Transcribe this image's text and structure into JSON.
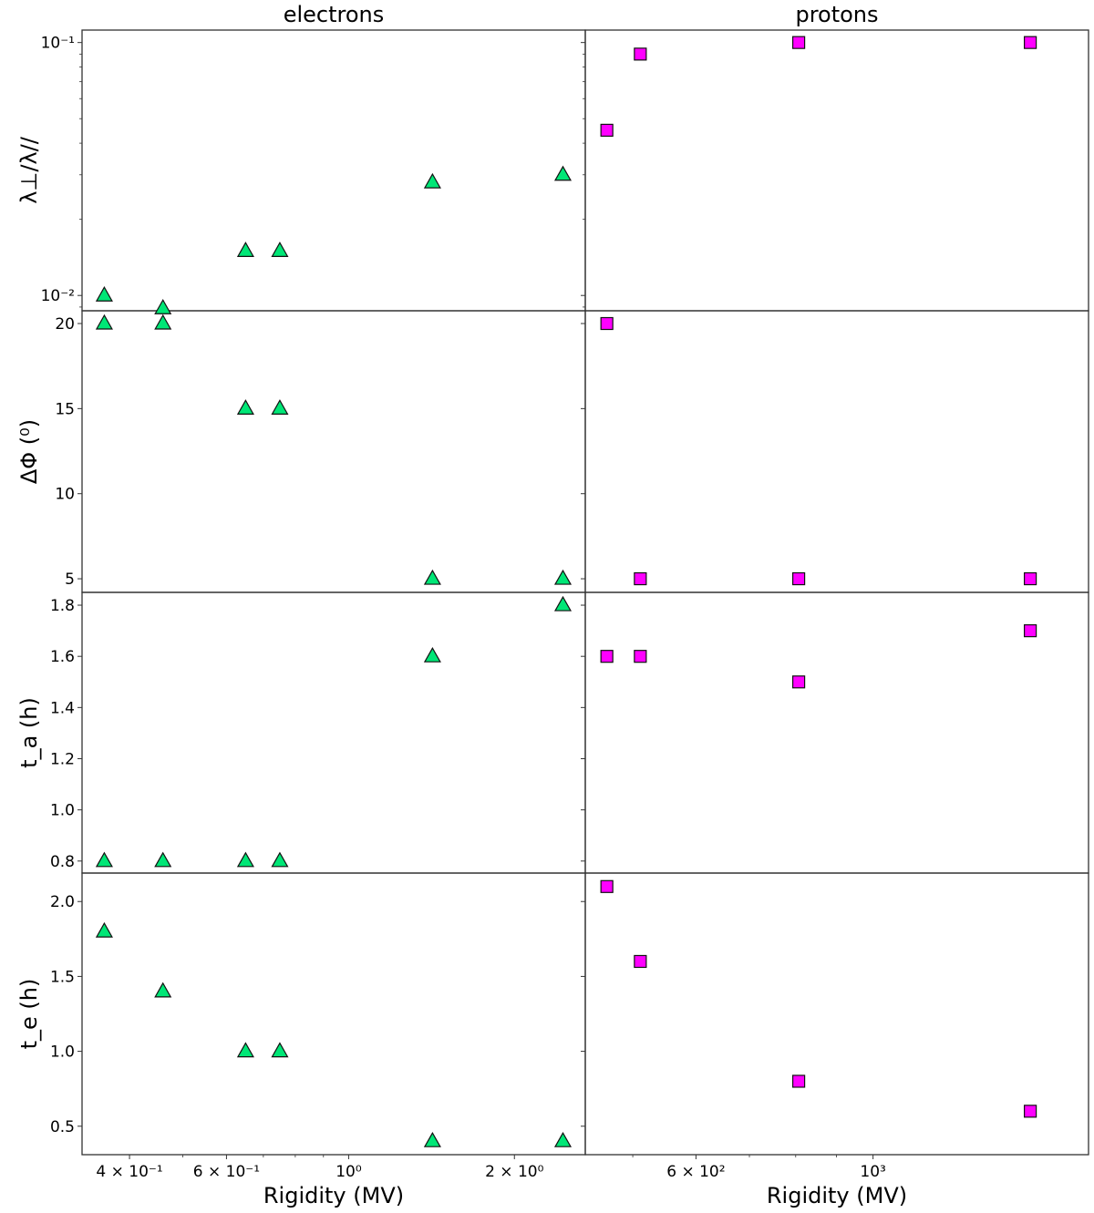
{
  "chart_data": {
    "type": "scatter",
    "layout": "4 rows x 2 columns, shared y per row, shared x per column, log x-axes",
    "columns": [
      {
        "title": "electrons",
        "xlabel": "Rigidity (MV)",
        "xscale": "log",
        "xlim": [
          0.328,
          2.69
        ],
        "xticks_major": [
          {
            "value": 0.4,
            "label": "4 × 10⁻¹"
          },
          {
            "value": 0.6,
            "label": "6 × 10⁻¹"
          },
          {
            "value": 1,
            "label": "10⁰"
          },
          {
            "value": 2,
            "label": "2 × 10⁰"
          }
        ],
        "xticks_minor": [
          0.5,
          0.7,
          0.8,
          0.9
        ],
        "marker": "triangle",
        "color": "#00e676",
        "x": [
          0.36,
          0.46,
          0.65,
          0.75,
          1.42,
          2.45
        ]
      },
      {
        "title": "protons",
        "xlabel": "Rigidity (MV)",
        "xscale": "log",
        "xlim": [
          436,
          1862
        ],
        "xticks_major": [
          {
            "value": 600,
            "label": "6 × 10²"
          },
          {
            "value": 1000,
            "label": "10³"
          }
        ],
        "xticks_minor": [
          500,
          700,
          800,
          900
        ],
        "marker": "square",
        "color": "#ff00ff",
        "x": [
          464,
          511,
          807,
          1574
        ]
      }
    ],
    "rows": [
      {
        "ylabel": "λ⊥/λ//",
        "yscale": "log",
        "ylim": [
          0.0087,
          0.112
        ],
        "yticks_major": [
          {
            "value": 0.1,
            "label": "10⁻¹"
          },
          {
            "value": 0.01,
            "label": "10⁻²"
          }
        ],
        "yticks_minor": [
          0.009,
          0.02,
          0.03,
          0.04,
          0.05,
          0.06,
          0.07,
          0.08,
          0.09
        ],
        "electrons": [
          0.01,
          0.0089,
          0.015,
          0.015,
          0.028,
          0.03
        ],
        "protons": [
          0.045,
          0.09,
          0.1,
          0.1
        ]
      },
      {
        "ylabel": "ΔΦ (⁰)",
        "yscale": "linear",
        "ylim": [
          4.2,
          20.75
        ],
        "yticks_major": [
          {
            "value": 5,
            "label": "5"
          },
          {
            "value": 10,
            "label": "10"
          },
          {
            "value": 15,
            "label": "15"
          },
          {
            "value": 20,
            "label": "20"
          }
        ],
        "electrons": [
          20,
          20,
          15,
          15,
          5,
          5
        ],
        "protons": [
          20,
          5,
          5,
          5
        ]
      },
      {
        "ylabel": "t_a (h)",
        "yscale": "linear",
        "ylim": [
          0.753,
          1.85
        ],
        "yticks_major": [
          {
            "value": 0.8,
            "label": "0.8"
          },
          {
            "value": 1.0,
            "label": "1.0"
          },
          {
            "value": 1.2,
            "label": "1.2"
          },
          {
            "value": 1.4,
            "label": "1.4"
          },
          {
            "value": 1.6,
            "label": "1.6"
          },
          {
            "value": 1.8,
            "label": "1.8"
          }
        ],
        "electrons": [
          0.8,
          0.8,
          0.8,
          0.8,
          1.6,
          1.8
        ],
        "protons": [
          1.6,
          1.6,
          1.5,
          1.7
        ]
      },
      {
        "ylabel": "t_e (h)",
        "yscale": "linear",
        "ylim": [
          0.31,
          2.19
        ],
        "yticks_major": [
          {
            "value": 0.5,
            "label": "0.5"
          },
          {
            "value": 1.0,
            "label": "1.0"
          },
          {
            "value": 1.5,
            "label": "1.5"
          },
          {
            "value": 2.0,
            "label": "2.0"
          }
        ],
        "electrons": [
          1.8,
          1.4,
          1.0,
          1.0,
          0.4,
          0.4
        ],
        "protons": [
          2.1,
          1.6,
          0.8,
          0.6
        ]
      }
    ]
  }
}
